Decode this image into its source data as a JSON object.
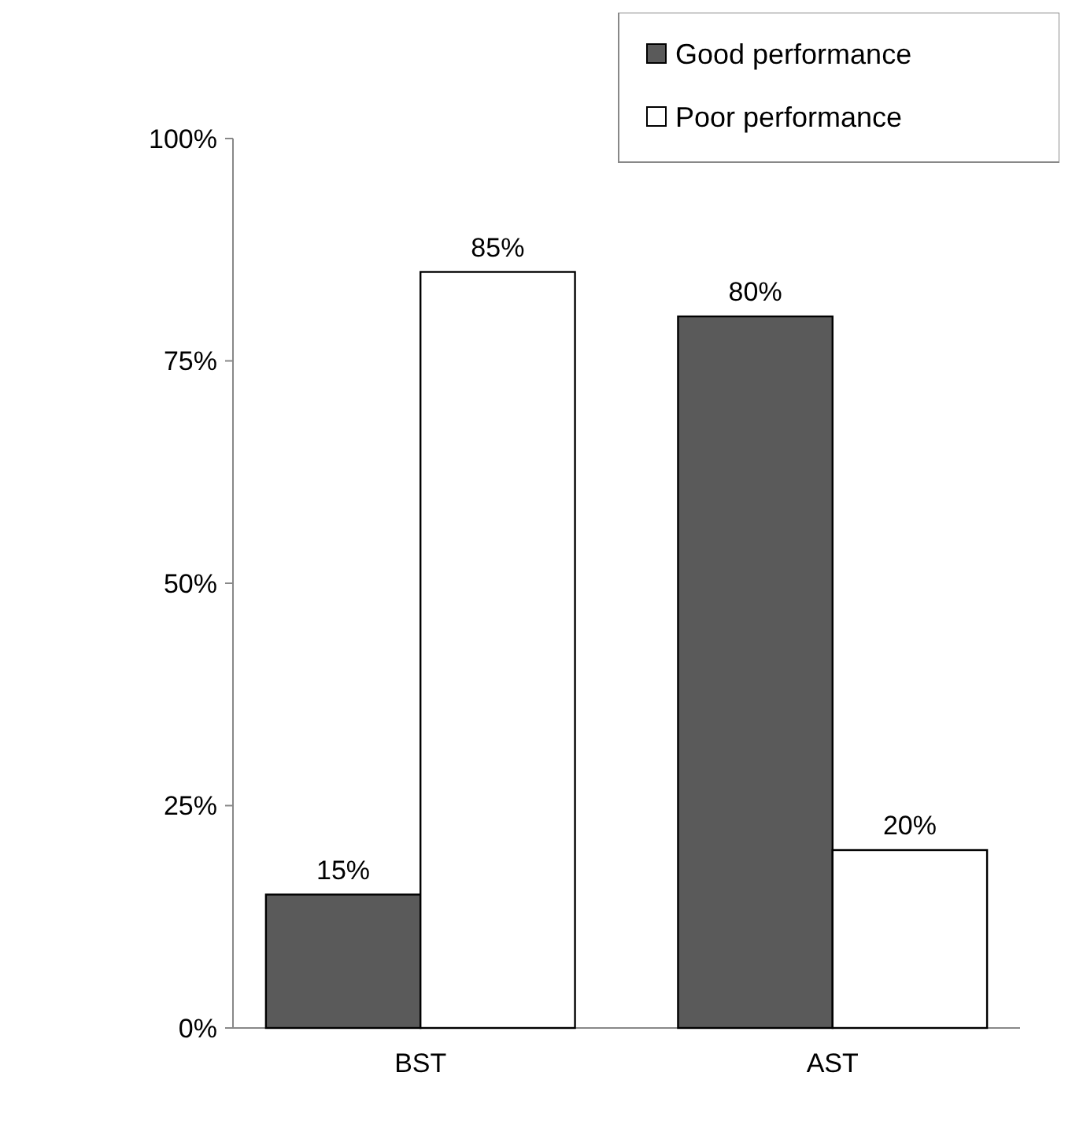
{
  "chart_data": {
    "type": "bar",
    "categories": [
      "BST",
      "AST"
    ],
    "series": [
      {
        "name": "Good performance",
        "color": "#5a5a5a",
        "values": [
          15,
          80
        ],
        "value_labels": [
          "15%",
          "80%"
        ]
      },
      {
        "name": "Poor performance",
        "color": "#ffffff",
        "values": [
          85,
          20
        ],
        "value_labels": [
          "85%",
          "20%"
        ]
      }
    ],
    "ylim": [
      0,
      100
    ],
    "yticks": [
      {
        "value": 0,
        "label": "0%"
      },
      {
        "value": 25,
        "label": "25%"
      },
      {
        "value": 50,
        "label": "50%"
      },
      {
        "value": 75,
        "label": "75%"
      },
      {
        "value": 100,
        "label": "100%"
      }
    ],
    "grid": false,
    "legend": "top right"
  }
}
